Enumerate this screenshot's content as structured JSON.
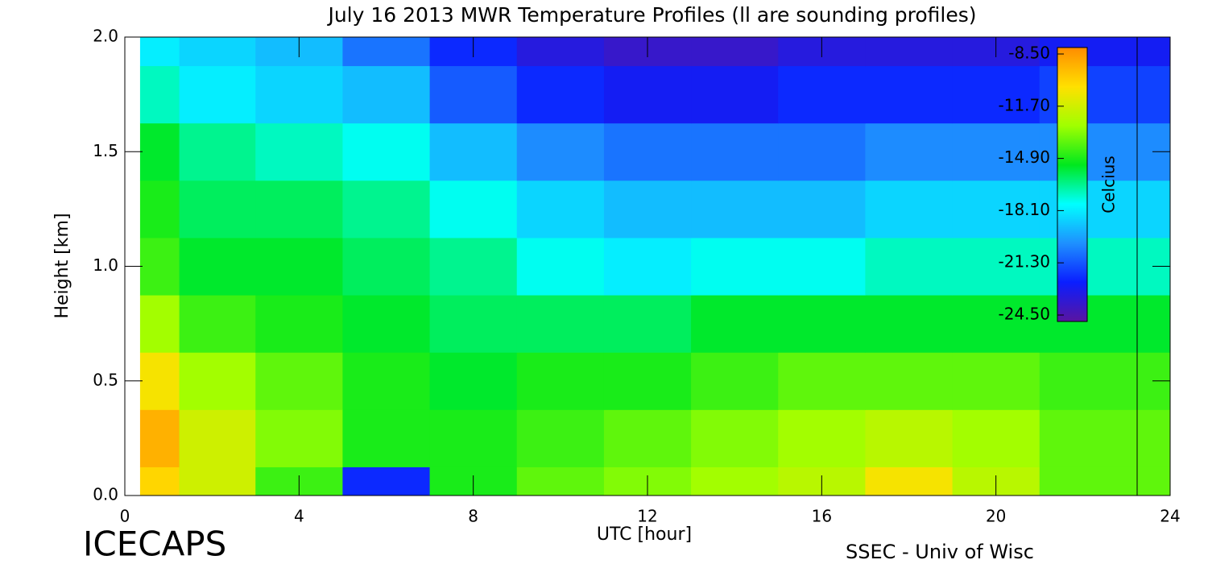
{
  "chart_data": {
    "type": "heatmap",
    "title": "July 16 2013 MWR Temperature Profiles (ll are sounding profiles)",
    "x_label": "UTC [hour]",
    "y_label": "Height [km]",
    "x": [
      0.5,
      2,
      4,
      6,
      8,
      10,
      12,
      14,
      16,
      18,
      20,
      22
    ],
    "y": [
      0,
      0.25,
      0.5,
      0.75,
      1.0,
      1.25,
      1.5,
      1.75,
      2.0
    ],
    "values": [
      [
        -10.5,
        -12,
        -14.5,
        -22,
        -15,
        -14,
        -13.5,
        -13,
        -12.5,
        -11,
        -12.5,
        -14
      ],
      [
        -9.5,
        -12,
        -13.5,
        -15,
        -15,
        -14.5,
        -14,
        -13.5,
        -13,
        -12.5,
        -13,
        -14
      ],
      [
        -11,
        -13,
        -14,
        -15,
        -15.5,
        -15,
        -15,
        -14.5,
        -14,
        -14,
        -14,
        -14.5
      ],
      [
        -13,
        -14.5,
        -15,
        -15.5,
        -16,
        -16,
        -16,
        -15.5,
        -15.5,
        -15.5,
        -15.5,
        -15.5
      ],
      [
        -14.5,
        -15.5,
        -15.5,
        -16,
        -16.5,
        -17.5,
        -18,
        -17.5,
        -17.5,
        -17,
        -17,
        -17
      ],
      [
        -15,
        -16,
        -16,
        -16.5,
        -17.5,
        -18.5,
        -19,
        -19,
        -19,
        -18.5,
        -18.5,
        -18.5
      ],
      [
        -15.5,
        -16.5,
        -17,
        -17.5,
        -19,
        -20,
        -20.5,
        -20.5,
        -20.5,
        -20,
        -20,
        -20
      ],
      [
        -17,
        -18,
        -18.5,
        -19,
        -21,
        -22,
        -22.5,
        -22.5,
        -22,
        -22,
        -22,
        -21.5
      ],
      [
        -18,
        -18.5,
        -19,
        -20.5,
        -22,
        -23,
        -23.5,
        -23.5,
        -23,
        -23,
        -23,
        -22.5
      ]
    ],
    "xlim": [
      0,
      24
    ],
    "xticks": [
      0,
      4,
      8,
      12,
      16,
      20,
      24
    ],
    "ylim": [
      0,
      2
    ],
    "yticks": [
      {
        "value": 0,
        "label": "0.0"
      },
      {
        "value": 0.5,
        "label": "0.5"
      },
      {
        "value": 1,
        "label": "1.0"
      },
      {
        "value": 1.5,
        "label": "1.5"
      },
      {
        "value": 2,
        "label": "2.0"
      }
    ],
    "colorbar_label": "Celcius",
    "clim": [
      -24.5,
      -8.5
    ],
    "cticks": [
      {
        "value": -8.5,
        "label": "-8.50"
      },
      {
        "value": -11.7,
        "label": "-11.70"
      },
      {
        "value": -14.9,
        "label": "-14.90"
      },
      {
        "value": -18.1,
        "label": "-18.10"
      },
      {
        "value": -21.3,
        "label": "-21.30"
      },
      {
        "value": -24.5,
        "label": "-24.50"
      }
    ],
    "colormap": [
      "#5a14a0",
      "#0a1eff",
      "#1e90ff",
      "#00ffff",
      "#00e81e",
      "#a0ff00",
      "#ffe000",
      "#ff8c00"
    ],
    "footer_left": "ICECAPS",
    "footer_right": "SSEC - Univ of Wisc"
  }
}
